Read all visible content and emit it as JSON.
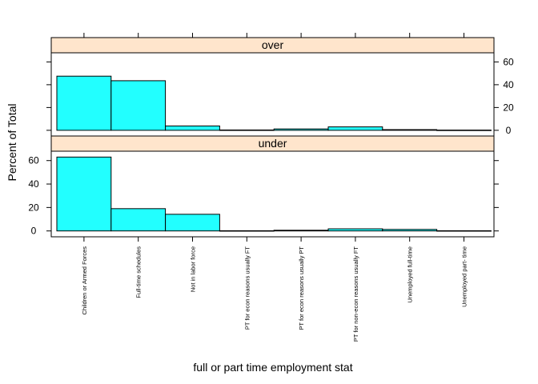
{
  "chart_data": {
    "type": "bar",
    "xlabel": "full or part time employment stat",
    "ylabel": "Percent of Total",
    "ylim": [
      -5,
      68
    ],
    "yticks": [
      0,
      20,
      40,
      60
    ],
    "grid": false,
    "categories": [
      "Children or Armed Forces",
      "Full-time schedules",
      "Not in labor force",
      "PT for econ reasons usually FT",
      "PT for econ reasons usually PT",
      "PT for non-econ reasons usually FT",
      "Unemployed full-time",
      "Unemployed part- time"
    ],
    "panels": [
      {
        "name": "over",
        "values": [
          47.5,
          43.5,
          3.8,
          0.3,
          1.2,
          3.0,
          0.6,
          0.2
        ]
      },
      {
        "name": "under",
        "values": [
          63.0,
          19.0,
          14.2,
          0.2,
          0.6,
          1.8,
          1.3,
          0.2
        ]
      }
    ],
    "colors": {
      "bar_fill": "#22ffff",
      "strip_fill": "#ffe5cc"
    }
  }
}
